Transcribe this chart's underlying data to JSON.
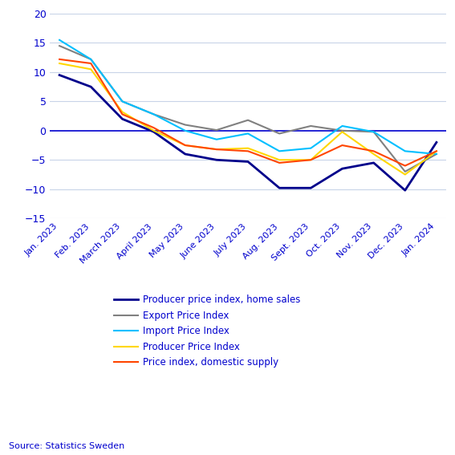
{
  "months": [
    "Jan. 2023",
    "Feb. 2023",
    "March 2023",
    "April 2023",
    "May 2023",
    "June 2023",
    "July 2023",
    "Aug. 2023",
    "Sept. 2023",
    "Oct. 2023",
    "Nov. 2023",
    "Dec. 2023",
    "Jan. 2024"
  ],
  "series": {
    "Producer price index, home sales": {
      "values": [
        9.5,
        7.5,
        2.0,
        -0.2,
        -4.0,
        -5.0,
        -5.3,
        -9.8,
        -9.8,
        -6.5,
        -5.5,
        -10.2,
        -2.0
      ],
      "color": "#00008B",
      "linewidth": 2.0
    },
    "Export Price Index": {
      "values": [
        14.5,
        12.2,
        5.0,
        2.8,
        1.0,
        0.1,
        1.8,
        -0.5,
        0.8,
        0.0,
        -0.2,
        -7.0,
        -4.0
      ],
      "color": "#808080",
      "linewidth": 1.5
    },
    "Import Price Index": {
      "values": [
        15.5,
        12.2,
        5.0,
        2.8,
        0.0,
        -1.5,
        -0.5,
        -3.5,
        -3.0,
        0.8,
        -0.2,
        -3.5,
        -4.0
      ],
      "color": "#00BFFF",
      "linewidth": 1.5
    },
    "Producer Price Index": {
      "values": [
        11.5,
        10.5,
        3.2,
        0.0,
        -2.5,
        -3.2,
        -3.0,
        -5.0,
        -5.0,
        -0.2,
        -4.0,
        -7.5,
        -3.5
      ],
      "color": "#FFD700",
      "linewidth": 1.5
    },
    "Price index, domestic supply": {
      "values": [
        12.2,
        11.5,
        2.8,
        0.5,
        -2.5,
        -3.2,
        -3.5,
        -5.5,
        -5.0,
        -2.5,
        -3.5,
        -6.0,
        -3.5
      ],
      "color": "#FF4500",
      "linewidth": 1.5
    }
  },
  "ylim": [
    -15,
    20
  ],
  "yticks": [
    -15,
    -10,
    -5,
    0,
    5,
    10,
    15,
    20
  ],
  "source": "Source: Statistics Sweden",
  "bg_color": "#ffffff",
  "grid_color": "#c8d4e8",
  "axis_color": "#0000CD",
  "legend_order": [
    "Producer price index, home sales",
    "Export Price Index",
    "Import Price Index",
    "Producer Price Index",
    "Price index, domestic supply"
  ]
}
